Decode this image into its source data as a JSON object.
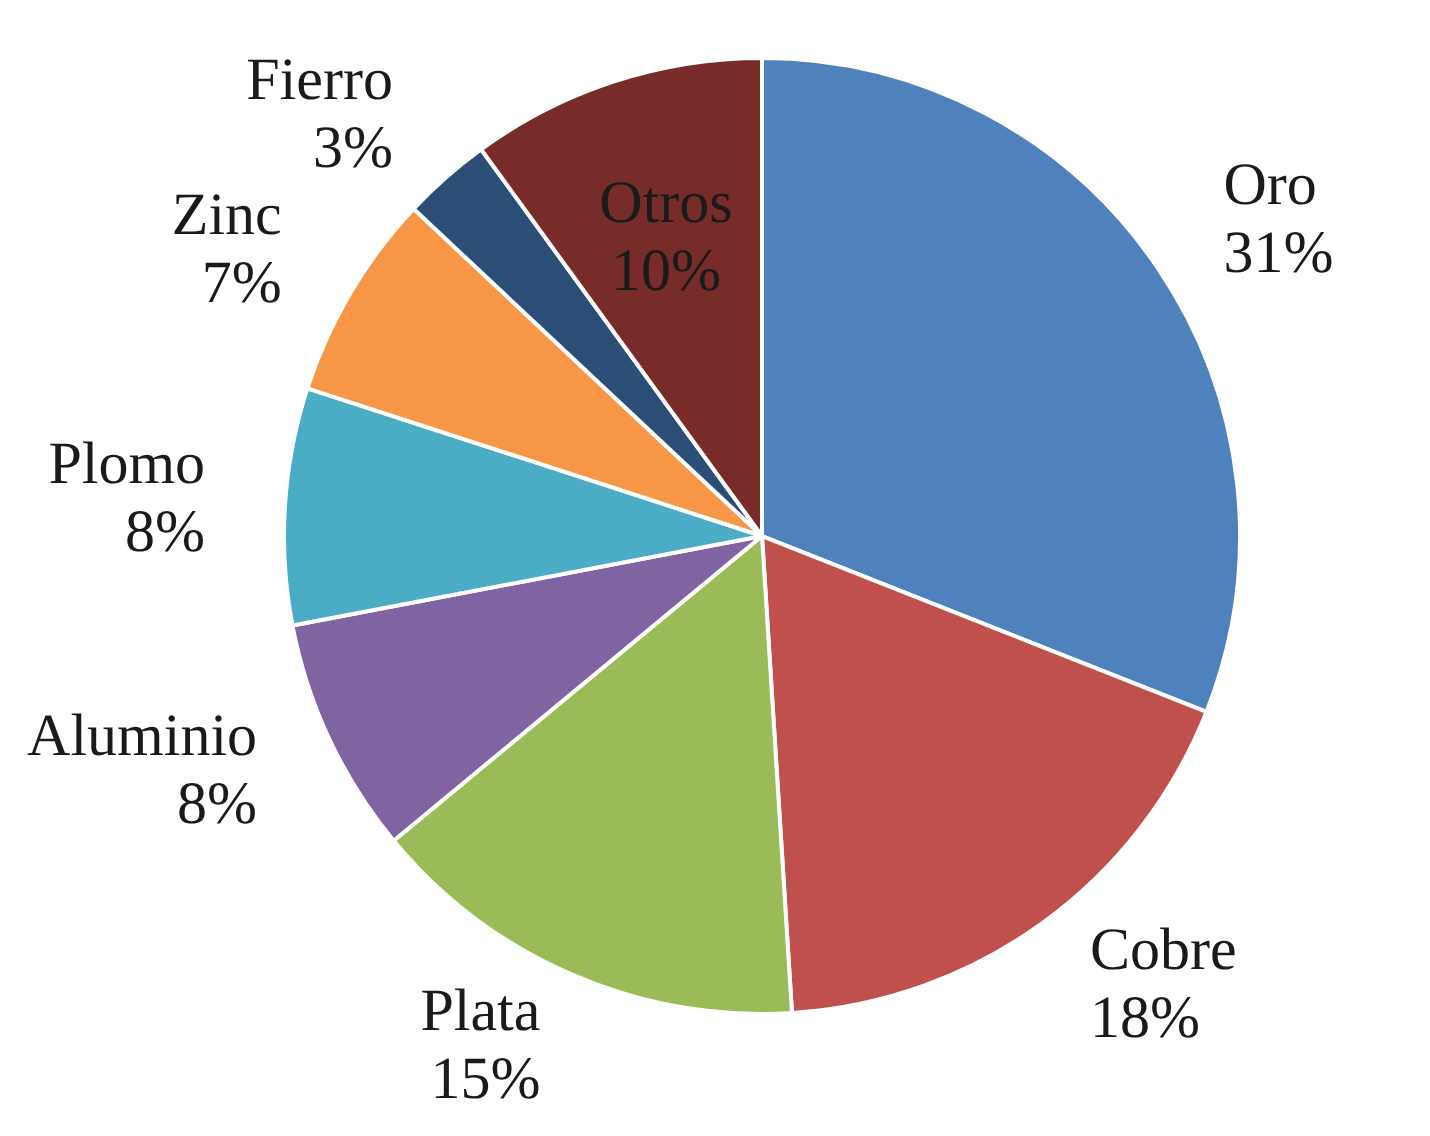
{
  "chart_data": {
    "type": "pie",
    "categories": [
      "Oro",
      "Cobre",
      "Plata",
      "Aluminio",
      "Plomo",
      "Zinc",
      "Fierro",
      "Otros"
    ],
    "values": [
      31,
      18,
      15,
      8,
      8,
      7,
      3,
      10
    ],
    "value_labels": [
      "31%",
      "18%",
      "15%",
      "8%",
      "8%",
      "7%",
      "3%",
      "10%"
    ],
    "colors": [
      "#4f81bd",
      "#c0504d",
      "#9bbb59",
      "#8064a2",
      "#4bacc6",
      "#f79646",
      "#2c4d75",
      "#772c2a"
    ],
    "legend": false
  }
}
